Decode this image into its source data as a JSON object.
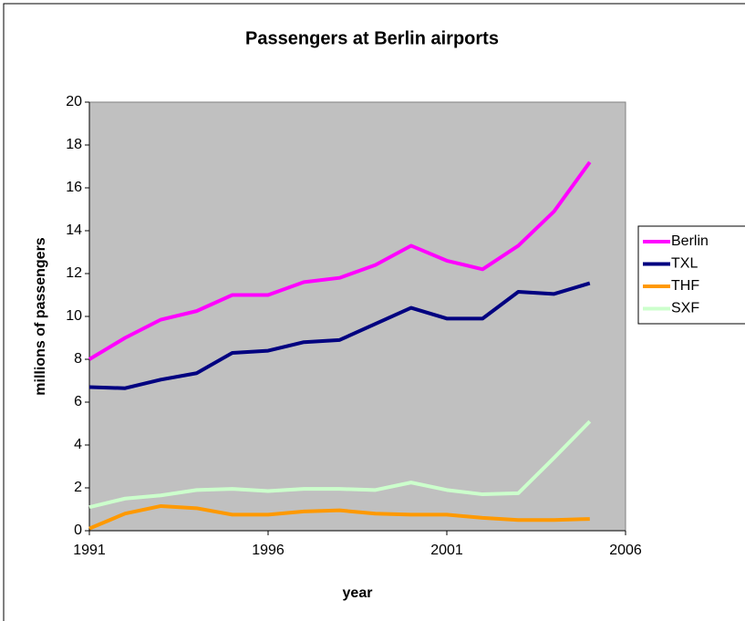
{
  "chart_data": {
    "type": "line",
    "title": "Passengers at Berlin airports",
    "x_label": "year",
    "y_label": "millions of passengers",
    "x": [
      1991,
      1992,
      1993,
      1994,
      1995,
      1996,
      1997,
      1998,
      1999,
      2000,
      2001,
      2002,
      2003,
      2004,
      2005
    ],
    "series": [
      {
        "name": "Berlin",
        "color": "#ff00ff",
        "values": [
          8.0,
          9.0,
          9.85,
          10.25,
          11.0,
          11.0,
          11.6,
          11.8,
          12.4,
          13.3,
          12.6,
          12.2,
          13.3,
          14.9,
          17.2
        ]
      },
      {
        "name": "TXL",
        "color": "#000080",
        "values": [
          6.7,
          6.65,
          7.05,
          7.35,
          8.3,
          8.4,
          8.8,
          8.9,
          9.65,
          10.4,
          9.9,
          9.9,
          11.15,
          11.05,
          11.55
        ]
      },
      {
        "name": "THF",
        "color": "#ff9900",
        "values": [
          0.1,
          0.8,
          1.15,
          1.05,
          0.75,
          0.75,
          0.9,
          0.95,
          0.8,
          0.75,
          0.75,
          0.6,
          0.5,
          0.5,
          0.55
        ]
      },
      {
        "name": "SXF",
        "color": "#ccffcc",
        "values": [
          1.1,
          1.5,
          1.65,
          1.9,
          1.95,
          1.85,
          1.95,
          1.95,
          1.9,
          2.25,
          1.9,
          1.7,
          1.75,
          3.4,
          5.1
        ]
      }
    ],
    "xlim": [
      1991,
      2006
    ],
    "xticks": [
      1991,
      1996,
      2001,
      2006
    ],
    "ylim": [
      0,
      20
    ],
    "yticks": [
      0,
      2,
      4,
      6,
      8,
      10,
      12,
      14,
      16,
      18,
      20
    ],
    "plot_background": "#c0c0c0",
    "legend": "right"
  }
}
